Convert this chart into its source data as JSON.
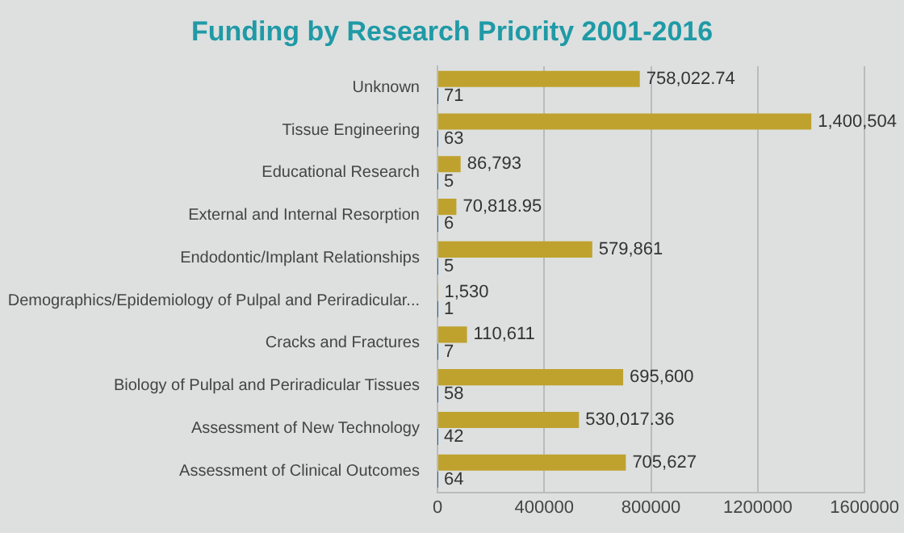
{
  "chart_data": {
    "type": "bar",
    "orientation": "horizontal",
    "title": "Funding by Research Priority 2001-2016",
    "categories": [
      "Unknown",
      "Tissue Engineering",
      "Educational Research",
      "External and Internal Resorption",
      "Endodontic/Implant Relationships",
      "Demographics/Epidemiology of Pulpal and Periradicular...",
      "Cracks and Fractures",
      "Biology of Pulpal and Periradicular Tissues",
      "Assessment of New Technology",
      "Assessment of Clinical Outcomes"
    ],
    "series": [
      {
        "color": "#bfa22e",
        "values": [
          758022.74,
          1400504,
          86793,
          70818.95,
          579861,
          1530,
          110611,
          695600,
          530017.36,
          705627
        ],
        "value_labels": [
          "758,022.74",
          "1,400,504",
          "86,793",
          "70,818.95",
          "579,861",
          "1,530",
          "110,611",
          "695,600",
          "530,017.36",
          "705,627"
        ]
      },
      {
        "color": "#2f6496",
        "values": [
          71,
          63,
          5,
          6,
          5,
          1,
          7,
          58,
          42,
          64
        ],
        "value_labels": [
          "71",
          "63",
          "5",
          "6",
          "5",
          "1",
          "7",
          "58",
          "42",
          "64"
        ]
      }
    ],
    "xlim": [
      0,
      1600000
    ],
    "xticks": [
      0,
      400000,
      800000,
      1200000,
      1600000
    ],
    "grid": "x",
    "legend": false
  }
}
